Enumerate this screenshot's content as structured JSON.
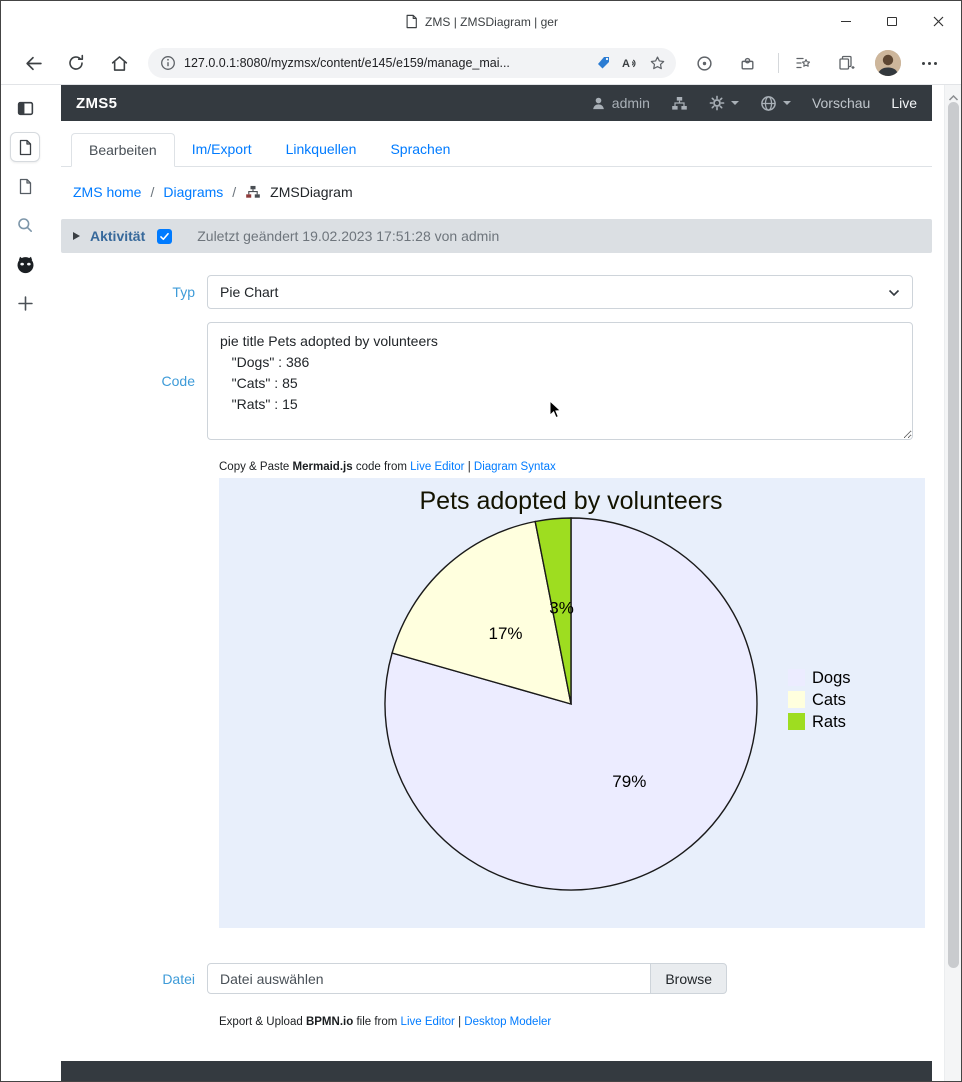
{
  "theme": {
    "accent": "#007bff",
    "navbar": "#343a40",
    "activity": "#dbdfe3",
    "preview": "#e8effb",
    "label": "#3e9bd8"
  },
  "browser": {
    "tab_title": "ZMS | ZMSDiagram | ger",
    "url": "127.0.0.1:8080/myzmsx/content/e145/e159/manage_mai..."
  },
  "navbar": {
    "brand": "ZMS5",
    "user": "admin",
    "preview_label": "Vorschau",
    "live_label": "Live"
  },
  "tabs": [
    "Bearbeiten",
    "Im/Export",
    "Linkquellen",
    "Sprachen"
  ],
  "breadcrumb": {
    "home": "ZMS home",
    "section": "Diagrams",
    "current": "ZMSDiagram",
    "separator": "/"
  },
  "activity": {
    "label": "Aktivität",
    "status": "Zuletzt geändert 19.02.2023 17:51:28 von admin"
  },
  "form": {
    "typ": {
      "label": "Typ",
      "value": "Pie Chart"
    },
    "code": {
      "label": "Code",
      "value": "pie title Pets adopted by volunteers\n   \"Dogs\" : 386\n   \"Cats\" : 85\n   \"Rats\" : 15"
    },
    "mermaid_help": {
      "prefix": "Copy & Paste",
      "name": "Mermaid.js",
      "mid": "code from",
      "link1": "Live Editor",
      "sep": "|",
      "link2": "Diagram Syntax"
    },
    "file": {
      "label": "Datei",
      "value": "Datei auswählen",
      "button": "Browse"
    },
    "bpmn_help": {
      "prefix": "Export & Upload",
      "name": "BPMN.io",
      "mid": "file from",
      "link1": "Live Editor",
      "sep": "|",
      "link2": "Desktop Modeler"
    }
  },
  "chart_data": {
    "type": "pie",
    "title": "Pets adopted by volunteers",
    "categories": [
      "Dogs",
      "Cats",
      "Rats"
    ],
    "values": [
      386,
      85,
      15
    ],
    "labels": [
      "79%",
      "17%",
      "3%"
    ],
    "colors": [
      "#ececff",
      "#ffffde",
      "#9edd20"
    ],
    "stroke": "#1a1a1a",
    "legend_position": "right",
    "start_angle_deg": 0,
    "direction": "clockwise"
  }
}
